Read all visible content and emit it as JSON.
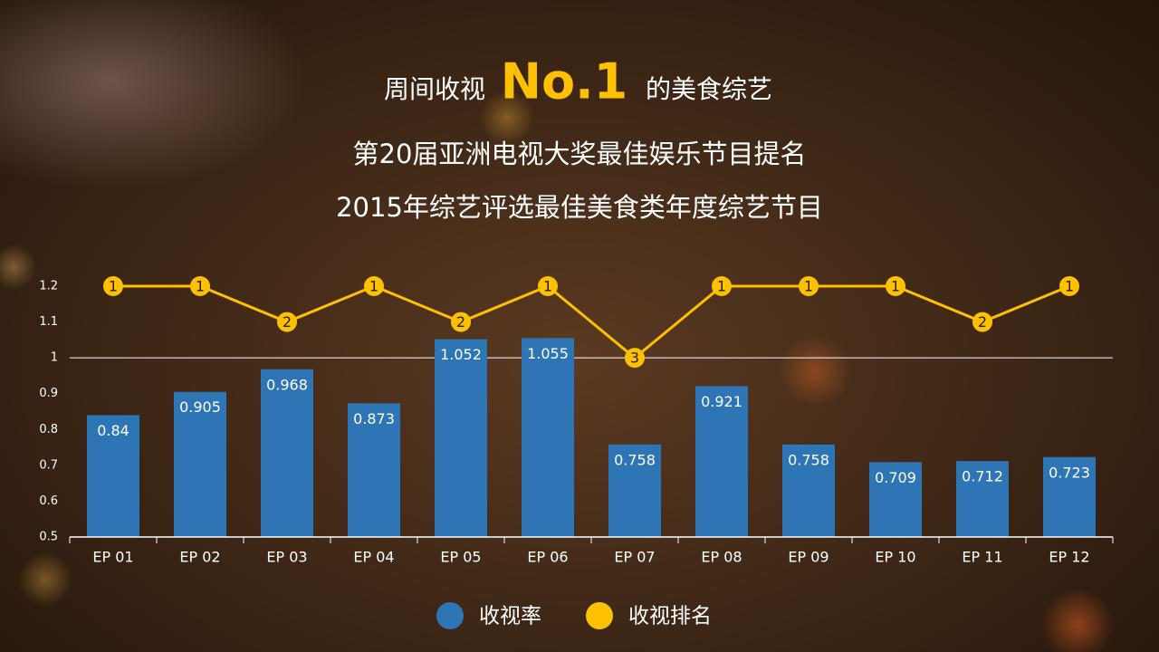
{
  "header": {
    "prefix": "周间收视",
    "highlight": "No.1",
    "suffix": "的美食综艺",
    "lines": [
      "第20届亚洲电视大奖最佳娱乐节目提名",
      "2015年综艺评选最佳美食类年度综艺节目"
    ]
  },
  "chart_data": {
    "type": "combo",
    "categories": [
      "EP 01",
      "EP 02",
      "EP 03",
      "EP 04",
      "EP 05",
      "EP 06",
      "EP 07",
      "EP 08",
      "EP 09",
      "EP 10",
      "EP 11",
      "EP 12"
    ],
    "series": [
      {
        "name": "收视率",
        "type": "bar",
        "color": "#2e75b6",
        "values": [
          0.84,
          0.905,
          0.968,
          0.873,
          1.052,
          1.055,
          0.758,
          0.921,
          0.758,
          0.709,
          0.712,
          0.723
        ]
      },
      {
        "name": "收视排名",
        "type": "line",
        "axis": "y2",
        "color": "#ffc000",
        "values": [
          1,
          1,
          2,
          1,
          2,
          1,
          3,
          1,
          1,
          1,
          2,
          1
        ]
      }
    ],
    "ylim": [
      0.5,
      1.2
    ],
    "yticks": [
      0.5,
      0.6,
      0.7,
      0.8,
      0.9,
      1,
      1.1,
      1.2
    ],
    "y2lim": [
      8,
      1
    ],
    "hline": 1,
    "legend": "bottom"
  }
}
